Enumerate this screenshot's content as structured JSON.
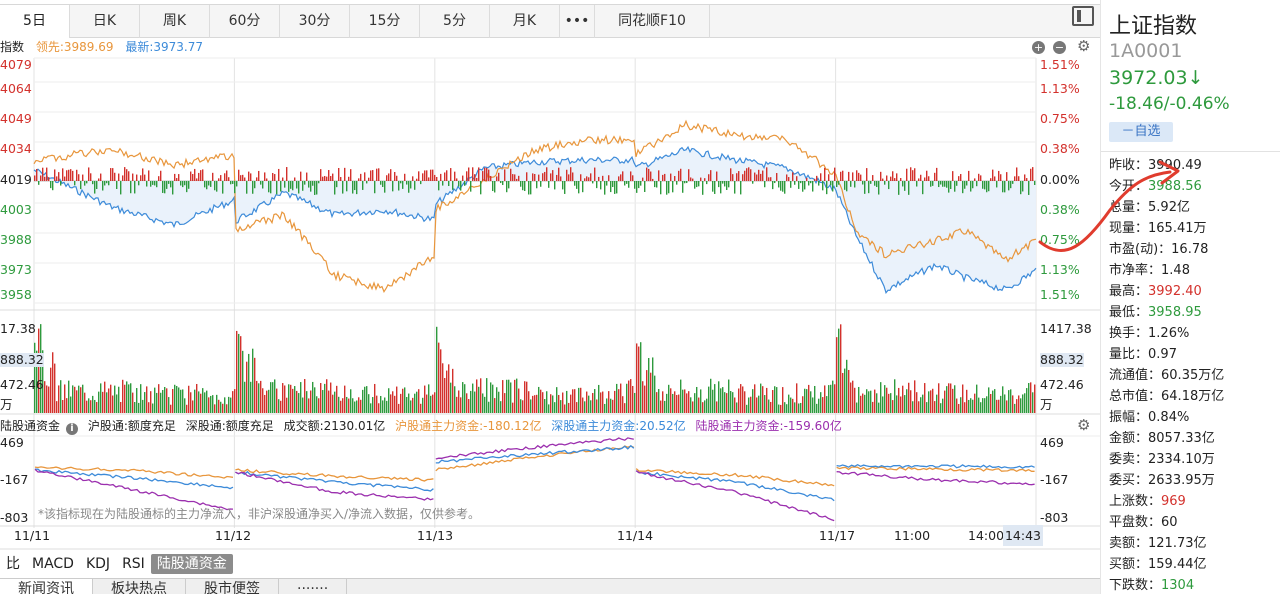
{
  "period_tabs": [
    {
      "label": "5日",
      "active": true
    },
    {
      "label": "日K"
    },
    {
      "label": "周K"
    },
    {
      "label": "60分"
    },
    {
      "label": "30分"
    },
    {
      "label": "15分"
    },
    {
      "label": "5分"
    },
    {
      "label": "月K"
    },
    {
      "label": "•••"
    },
    {
      "label": "同花顺F10"
    }
  ],
  "legend": {
    "name": "指数",
    "lead": "领先:3989.69",
    "latest": "最新:3973.77"
  },
  "price_axis": {
    "left": [
      "4079",
      "4064",
      "4049",
      "4034",
      "4019",
      "4003",
      "3988",
      "3973",
      "3958"
    ],
    "right": [
      "1.51%",
      "1.13%",
      "0.75%",
      "0.38%",
      "0.00%",
      "0.38%",
      "0.75%",
      "1.13%",
      "1.51%"
    ]
  },
  "volume_axis": {
    "left": [
      "17.38",
      "888.32",
      "472.46",
      "万"
    ],
    "right": [
      "1417.38",
      "888.32",
      "472.46",
      "万"
    ]
  },
  "hk_panel": {
    "title": "陆股通资金",
    "sh_status": "沪股通:额度充足",
    "sz_status": "深股通:额度充足",
    "turnover": "成交额:2130.01亿",
    "sh_main": "沪股通主力资金:-180.12亿",
    "sz_main": "深股通主力资金:20.52亿",
    "total_main": "陆股通主力资金:-159.60亿",
    "axis": [
      "469",
      "-167",
      "-803"
    ],
    "note": "*该指标现在为陆股通标的主力净流入，非沪深股通净买入/净流入数据，仅供参考。"
  },
  "x_axis": [
    "11/11",
    "11/12",
    "11/13",
    "11/14",
    "11/17",
    "11:00",
    "14:00"
  ],
  "x_current": "14:43",
  "indicator_tabs": [
    {
      "label": "比"
    },
    {
      "label": "MACD"
    },
    {
      "label": "KDJ"
    },
    {
      "label": "RSI"
    },
    {
      "label": "陆股通资金",
      "active": true
    }
  ],
  "bottom_tabs": [
    {
      "label": "新闻资讯",
      "active": true
    },
    {
      "label": "板块热点"
    },
    {
      "label": "股市便签"
    },
    {
      "label": "·······"
    }
  ],
  "quote": {
    "name": "上证指数",
    "code": "1A0001",
    "price": "3972.03↓",
    "change": "-18.46/-0.46%",
    "watch": "－自选"
  },
  "stats": [
    {
      "label": "昨收：",
      "value": "3990.49",
      "color": "black"
    },
    {
      "label": "今开：",
      "value": "3988.56",
      "color": "green"
    },
    {
      "label": "总量：",
      "value": "5.92亿",
      "color": "black"
    },
    {
      "label": "现量：",
      "value": "165.41万",
      "color": "black"
    },
    {
      "label": "市盈(动)：",
      "value": "16.78",
      "color": "black"
    },
    {
      "label": "市净率：",
      "value": "1.48",
      "color": "black"
    },
    {
      "label": "最高：",
      "value": "3992.40",
      "color": "red"
    },
    {
      "label": "最低：",
      "value": "3958.95",
      "color": "green"
    },
    {
      "label": "换手：",
      "value": "1.26%",
      "color": "black"
    },
    {
      "label": "量比：",
      "value": "0.97",
      "color": "black"
    },
    {
      "label": "流通值：",
      "value": "60.35万亿",
      "color": "black"
    },
    {
      "label": "总市值：",
      "value": "64.18万亿",
      "color": "black"
    },
    {
      "label": "振幅：",
      "value": "0.84%",
      "color": "black"
    },
    {
      "label": "金额：",
      "value": "8057.33亿",
      "color": "black"
    },
    {
      "label": "委卖：",
      "value": "2334.10万",
      "color": "black"
    },
    {
      "label": "委买：",
      "value": "2633.95万",
      "color": "black"
    },
    {
      "label": "上涨数：",
      "value": "969",
      "color": "red"
    },
    {
      "label": "平盘数：",
      "value": "60",
      "color": "black"
    },
    {
      "label": "卖额：",
      "value": "121.73亿",
      "color": "black"
    },
    {
      "label": "买额：",
      "value": "159.44亿",
      "color": "black"
    },
    {
      "label": "下跌数：",
      "value": "1304",
      "color": "green"
    }
  ],
  "colors": {
    "up": "#d3312c",
    "down": "#2e9a3d",
    "price_line": "#3d8bd9",
    "lead_line": "#e8963c",
    "total_flow": "#9b2fae",
    "accent": "#3a74c4"
  }
}
